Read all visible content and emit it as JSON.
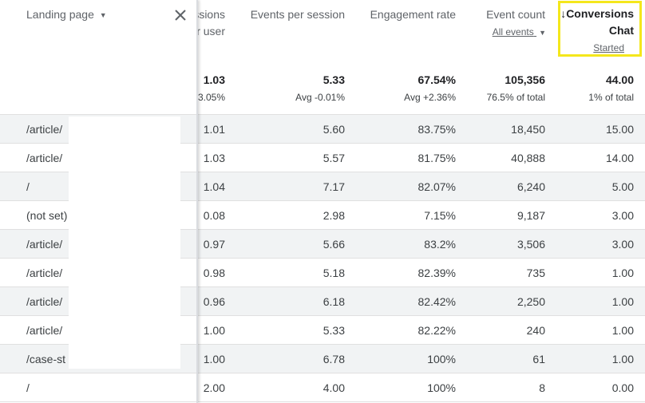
{
  "columns": [
    {
      "label": "ssions",
      "sublabel": "r user"
    },
    {
      "label": "Events per session"
    },
    {
      "label": "Engagement rate"
    },
    {
      "label": "Event count",
      "sublabel": "All events"
    },
    {
      "label_line1": "Conversions",
      "label_line2": "Chat",
      "sublabel": "Started",
      "sort_icon": "arrow-down-icon"
    }
  ],
  "totals": [
    {
      "value": "1.03",
      "sub": "+3.05%"
    },
    {
      "value": "5.33",
      "sub": "Avg -0.01%"
    },
    {
      "value": "67.54%",
      "sub": "Avg +2.36%"
    },
    {
      "value": "105,356",
      "sub": "76.5% of total"
    },
    {
      "value": "44.00",
      "sub": "1% of total"
    }
  ],
  "rows": [
    {
      "page": "/article/",
      "c1": "1.01",
      "c2": "5.60",
      "c3": "83.75%",
      "c4": "18,450",
      "c5": "15.00"
    },
    {
      "page": "/article/",
      "c1": "1.03",
      "c2": "5.57",
      "c3": "81.75%",
      "c4": "40,888",
      "c5": "14.00"
    },
    {
      "page": "/",
      "c1": "1.04",
      "c2": "7.17",
      "c3": "82.07%",
      "c4": "6,240",
      "c5": "5.00"
    },
    {
      "page": "(not set)",
      "c1": "0.08",
      "c2": "2.98",
      "c3": "7.15%",
      "c4": "9,187",
      "c5": "3.00"
    },
    {
      "page": "/article/",
      "c1": "0.97",
      "c2": "5.66",
      "c3": "83.2%",
      "c4": "3,506",
      "c5": "3.00"
    },
    {
      "page": "/article/",
      "c1": "0.98",
      "c2": "5.18",
      "c3": "82.39%",
      "c4": "735",
      "c5": "1.00"
    },
    {
      "page": "/article/",
      "c1": "0.96",
      "c2": "6.18",
      "c3": "82.42%",
      "c4": "2,250",
      "c5": "1.00"
    },
    {
      "page": "/article/",
      "c1": "1.00",
      "c2": "5.33",
      "c3": "82.22%",
      "c4": "240",
      "c5": "1.00"
    },
    {
      "page": "/case-st",
      "c1": "1.00",
      "c2": "6.78",
      "c3": "100%",
      "c4": "61",
      "c5": "1.00"
    },
    {
      "page": "/",
      "c1": "2.00",
      "c2": "4.00",
      "c3": "100%",
      "c4": "8",
      "c5": "0.00"
    }
  ],
  "panel": {
    "title": "Landing page",
    "dropdown_icon": "caret-down-icon",
    "close_icon": "close-icon"
  },
  "colors": {
    "highlight": "#f4e71c",
    "shaded_row": "#f1f3f4"
  }
}
